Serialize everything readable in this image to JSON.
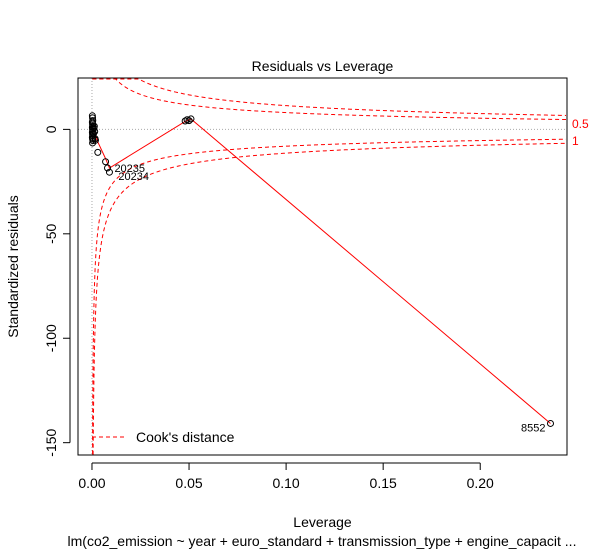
{
  "chart_data": {
    "type": "scatter",
    "title": "Residuals vs Leverage",
    "xlabel": "Leverage",
    "ylabel": "Standardized residuals",
    "subtitle": "lm(co2_emission ~ year + euro_standard + transmission_type + engine_capacit ...",
    "xlim": [
      -0.0072,
      0.2447
    ],
    "ylim": [
      -155.9,
      24.6
    ],
    "x_ticks": [
      0.0,
      0.05,
      0.1,
      0.15,
      0.2
    ],
    "x_tick_labels": [
      "0.00",
      "0.05",
      "0.10",
      "0.15",
      "0.20"
    ],
    "y_ticks": [
      0,
      -50,
      -100,
      -150
    ],
    "y_tick_labels": [
      "0",
      "-50",
      "-100",
      "-150"
    ],
    "grid": false,
    "legend": {
      "position": "bottom-left",
      "label": "Cook's distance"
    },
    "cook_levels": [
      {
        "label": "0.5",
        "value": 0.5
      },
      {
        "label": "1",
        "value": 1
      }
    ],
    "points": [
      {
        "x": 0.0002,
        "y": 6.5
      },
      {
        "x": 0.0003,
        "y": 5.5
      },
      {
        "x": 0.0004,
        "y": 4.2
      },
      {
        "x": 0.0002,
        "y": 3.4
      },
      {
        "x": 0.0003,
        "y": 2.6
      },
      {
        "x": 0.0004,
        "y": 1.8
      },
      {
        "x": 0.0002,
        "y": 1.0
      },
      {
        "x": 0.0003,
        "y": 0.2
      },
      {
        "x": 0.0004,
        "y": -0.6
      },
      {
        "x": 0.0002,
        "y": -1.4
      },
      {
        "x": 0.0003,
        "y": -2.2
      },
      {
        "x": 0.0004,
        "y": -3.0
      },
      {
        "x": 0.0002,
        "y": -3.8
      },
      {
        "x": 0.0003,
        "y": -4.6
      },
      {
        "x": 0.0005,
        "y": -5.4
      },
      {
        "x": 0.0003,
        "y": -6.5
      },
      {
        "x": 0.0008,
        "y": -2.0
      },
      {
        "x": 0.001,
        "y": 0.5
      },
      {
        "x": 0.0012,
        "y": 1.5
      },
      {
        "x": 0.0014,
        "y": -1.0
      },
      {
        "x": 0.0016,
        "y": -4.5
      },
      {
        "x": 0.0018,
        "y": -5.2
      },
      {
        "x": 0.003,
        "y": -11.0
      },
      {
        "x": 0.007,
        "y": -15.5
      },
      {
        "x": 0.008,
        "y": -18.5
      },
      {
        "x": 0.009,
        "y": -20.5
      },
      {
        "x": 0.048,
        "y": 4.0
      },
      {
        "x": 0.049,
        "y": 4.6
      },
      {
        "x": 0.05,
        "y": 4.2
      },
      {
        "x": 0.051,
        "y": 5.0
      },
      {
        "x": 0.2362,
        "y": -140.8
      }
    ],
    "labeled_points": [
      {
        "label": "20235",
        "x": 0.009,
        "y": -18.5
      },
      {
        "label": "20234",
        "x": 0.0095,
        "y": -20.8
      },
      {
        "label": "8552",
        "x": 0.2362,
        "y": -140.8
      }
    ],
    "smoother": [
      {
        "x": 0.0002,
        "y": -1.0
      },
      {
        "x": 0.001,
        "y": 0.0
      },
      {
        "x": 0.003,
        "y": -6.0
      },
      {
        "x": 0.007,
        "y": -14.0
      },
      {
        "x": 0.009,
        "y": -18.5
      },
      {
        "x": 0.048,
        "y": 3.8
      },
      {
        "x": 0.051,
        "y": 5.0
      },
      {
        "x": 0.2362,
        "y": -140.8
      }
    ]
  },
  "colors": {
    "points": "#000000",
    "smoother": "#ff0000",
    "cook": "#ff0000",
    "reference": "#aaaaaa"
  }
}
